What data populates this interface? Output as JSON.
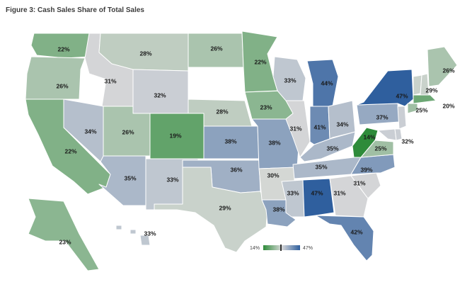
{
  "title": "Figure 3: Cash Sales Share of Total Sales",
  "legend": {
    "min_label": "14%",
    "max_label": "47%",
    "low_color": "#2e8b3a",
    "mid_color": "#d9d9d9",
    "high_color": "#2f5f9e"
  },
  "states": [
    {
      "id": "WA",
      "value": 22,
      "label": "22%"
    },
    {
      "id": "OR",
      "value": 26,
      "label": "26%"
    },
    {
      "id": "CA",
      "value": 22,
      "label": "22%"
    },
    {
      "id": "ID",
      "value": 31,
      "label": "31%"
    },
    {
      "id": "NV",
      "value": 34,
      "label": "34%"
    },
    {
      "id": "MT",
      "value": 28,
      "label": "28%"
    },
    {
      "id": "WY",
      "value": 32,
      "label": "32%"
    },
    {
      "id": "UT",
      "value": 26,
      "label": "26%"
    },
    {
      "id": "AZ",
      "value": 35,
      "label": "35%"
    },
    {
      "id": "CO",
      "value": 19,
      "label": "19%"
    },
    {
      "id": "NM",
      "value": 33,
      "label": "33%"
    },
    {
      "id": "ND",
      "value": 26,
      "label": "26%"
    },
    {
      "id": "SD",
      "value": null,
      "label": ""
    },
    {
      "id": "NE",
      "value": 28,
      "label": "28%"
    },
    {
      "id": "KS",
      "value": 38,
      "label": "38%"
    },
    {
      "id": "OK",
      "value": 36,
      "label": "36%"
    },
    {
      "id": "TX",
      "value": 29,
      "label": "29%"
    },
    {
      "id": "MN",
      "value": 22,
      "label": "22%"
    },
    {
      "id": "IA",
      "value": 23,
      "label": "23%"
    },
    {
      "id": "MO",
      "value": 38,
      "label": "38%"
    },
    {
      "id": "AR",
      "value": 30,
      "label": "30%"
    },
    {
      "id": "LA",
      "value": 38,
      "label": "38%"
    },
    {
      "id": "WI",
      "value": 33,
      "label": "33%"
    },
    {
      "id": "IL",
      "value": 31,
      "label": "31%"
    },
    {
      "id": "MI",
      "value": 44,
      "label": "44%"
    },
    {
      "id": "IN",
      "value": 41,
      "label": "41%"
    },
    {
      "id": "OH",
      "value": 34,
      "label": "34%"
    },
    {
      "id": "KY",
      "value": 35,
      "label": "35%"
    },
    {
      "id": "TN",
      "value": 35,
      "label": "35%"
    },
    {
      "id": "MS",
      "value": 33,
      "label": "33%"
    },
    {
      "id": "AL",
      "value": 47,
      "label": "47%"
    },
    {
      "id": "GA",
      "value": 31,
      "label": "31%"
    },
    {
      "id": "FL",
      "value": 42,
      "label": "42%"
    },
    {
      "id": "SC",
      "value": 31,
      "label": "31%"
    },
    {
      "id": "NC",
      "value": 39,
      "label": "39%"
    },
    {
      "id": "VA",
      "value": 25,
      "label": "25%"
    },
    {
      "id": "WV",
      "value": 14,
      "label": "14%"
    },
    {
      "id": "MD",
      "value": 32,
      "label": "32%"
    },
    {
      "id": "PA",
      "value": 37,
      "label": "37%"
    },
    {
      "id": "NY",
      "value": 47,
      "label": "47%"
    },
    {
      "id": "VT",
      "value": 29,
      "label": "29%"
    },
    {
      "id": "NH",
      "value": 29,
      "label": ""
    },
    {
      "id": "ME",
      "value": 26,
      "label": "26%"
    },
    {
      "id": "MA",
      "value": 20,
      "label": "20%"
    },
    {
      "id": "CT",
      "value": 25,
      "label": "25%"
    },
    {
      "id": "NJ",
      "value": 32,
      "label": ""
    },
    {
      "id": "DE",
      "value": 32,
      "label": ""
    },
    {
      "id": "AK",
      "value": 23,
      "label": "23%"
    },
    {
      "id": "HI",
      "value": 33,
      "label": "33%"
    }
  ]
}
